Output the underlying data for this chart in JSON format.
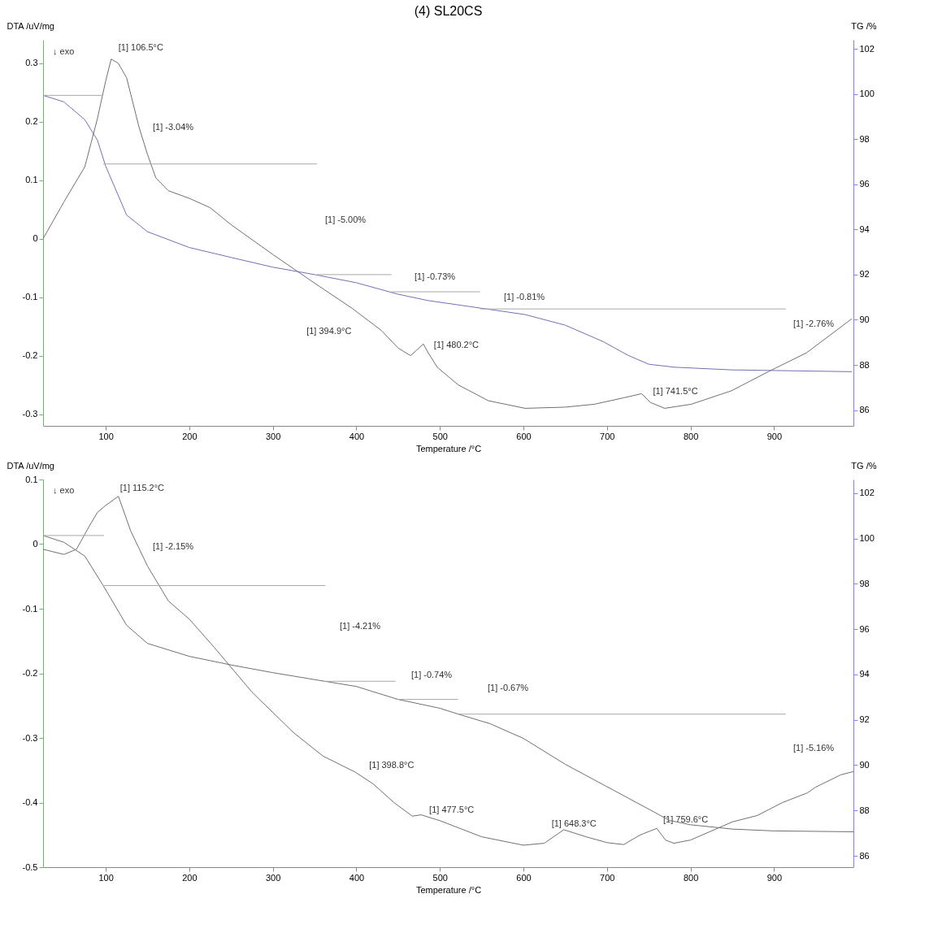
{
  "chart_data": [
    {
      "type": "line",
      "title": "(4) SL20CS",
      "xlabel": "Temperature /°C",
      "ylabel": "DTA /uV/mg",
      "y2label": "TG /%",
      "xlim": [
        25,
        995
      ],
      "xticks": [
        100,
        200,
        300,
        400,
        500,
        600,
        700,
        800,
        900
      ],
      "ylim": [
        -0.32,
        0.34
      ],
      "yticks": [
        -0.3,
        -0.2,
        -0.1,
        0,
        0.1,
        0.2,
        0.3
      ],
      "y2lim": [
        85.3,
        102.4
      ],
      "y2ticks": [
        86,
        88,
        90,
        92,
        94,
        96,
        98,
        100,
        102
      ],
      "series": [
        {
          "color": "#707070",
          "x": [
            25,
            50,
            75,
            90,
            100,
            106.5,
            115,
            125,
            140,
            150,
            160,
            175,
            200,
            225,
            250,
            300,
            350,
            394.9,
            430,
            450,
            465,
            480.2,
            486,
            497,
            522,
            558,
            602,
            650,
            685,
            720,
            741.5,
            752,
            769,
            801,
            849,
            895,
            939,
            993
          ],
          "values": [
            0.0,
            0.063,
            0.123,
            0.205,
            0.27,
            0.307,
            0.3,
            0.275,
            0.19,
            0.144,
            0.104,
            0.082,
            0.069,
            0.053,
            0.024,
            -0.027,
            -0.076,
            -0.119,
            -0.157,
            -0.187,
            -0.2,
            -0.18,
            -0.195,
            -0.22,
            -0.25,
            -0.277,
            -0.29,
            -0.288,
            -0.283,
            -0.272,
            -0.265,
            -0.28,
            -0.29,
            -0.283,
            -0.26,
            -0.226,
            -0.195,
            -0.137
          ]
        },
        {
          "color": "#7070b8",
          "axis": "y2",
          "x": [
            25,
            50,
            75,
            90,
            100,
            125,
            150,
            200,
            250,
            300,
            350,
            400,
            450,
            486,
            548,
            602,
            650,
            695,
            725,
            750,
            780,
            849,
            993
          ],
          "values": [
            99.94,
            99.65,
            98.86,
            97.96,
            96.8,
            94.64,
            93.9,
            93.2,
            92.76,
            92.33,
            92.0,
            91.64,
            91.13,
            90.85,
            90.52,
            90.23,
            89.76,
            89.04,
            88.43,
            88.03,
            87.9,
            87.78,
            87.7
          ]
        },
        {
          "color": "#a8a8a8",
          "axis": "y2",
          "x": [
            25,
            97
          ],
          "values": [
            99.94,
            99.94
          ]
        },
        {
          "color": "#a8a8a8",
          "axis": "y2",
          "x": [
            97,
            353
          ],
          "values": [
            96.9,
            96.9
          ]
        },
        {
          "color": "#a8a8a8",
          "axis": "y2",
          "x": [
            353,
            442
          ],
          "values": [
            92.0,
            92.0
          ]
        },
        {
          "color": "#a8a8a8",
          "axis": "y2",
          "x": [
            442,
            548
          ],
          "values": [
            91.24,
            91.24
          ]
        },
        {
          "color": "#a8a8a8",
          "axis": "y2",
          "x": [
            548,
            914
          ],
          "values": [
            90.48,
            90.48
          ]
        }
      ],
      "annotations": [
        "↓ exo",
        {
          "text": "[1] 106.5°C",
          "x": 106.5,
          "y": 0.307
        },
        "[1] -3.04%",
        "[1] -5.00%",
        "[1] -0.73%",
        "[1] -0.81%",
        {
          "text": "[1] 394.9°C",
          "x": 394.9,
          "y": -0.119
        },
        {
          "text": "[1] 480.2°C",
          "x": 480.2,
          "y": -0.18
        },
        {
          "text": "[1] 741.5°C",
          "x": 741.5,
          "y": -0.265
        },
        "[1] -2.76%"
      ]
    },
    {
      "type": "line",
      "xlabel": "Temperature /°C",
      "ylabel": "DTA /uV/mg",
      "y2label": "TG /%",
      "xlim": [
        25,
        995
      ],
      "xticks": [
        100,
        200,
        300,
        400,
        500,
        600,
        700,
        800,
        900
      ],
      "ylim": [
        -0.5,
        0.1
      ],
      "yticks": [
        -0.5,
        -0.4,
        -0.3,
        -0.2,
        -0.1,
        0,
        0.1
      ],
      "y2lim": [
        85.5,
        102.6
      ],
      "y2ticks": [
        86,
        88,
        90,
        92,
        94,
        96,
        98,
        100,
        102
      ],
      "series": [
        {
          "color": "#707070",
          "x": [
            25,
            50,
            65,
            80,
            90,
            100,
            115.2,
            130,
            150,
            175,
            200,
            230,
            275,
            325,
            360,
            398.8,
            420,
            445,
            467,
            477.5,
            500,
            550,
            600,
            625,
            648.3,
            675,
            700,
            720,
            740,
            759.6,
            770,
            780,
            800,
            850,
            880,
            910,
            940,
            950,
            980,
            995
          ],
          "values": [
            -0.008,
            -0.016,
            -0.008,
            0.027,
            0.049,
            0.06,
            0.074,
            0.02,
            -0.034,
            -0.088,
            -0.116,
            -0.16,
            -0.229,
            -0.292,
            -0.328,
            -0.353,
            -0.371,
            -0.4,
            -0.421,
            -0.419,
            -0.428,
            -0.453,
            -0.466,
            -0.463,
            -0.442,
            -0.453,
            -0.462,
            -0.465,
            -0.45,
            -0.44,
            -0.458,
            -0.463,
            -0.458,
            -0.43,
            -0.42,
            -0.4,
            -0.385,
            -0.376,
            -0.357,
            -0.352
          ]
        },
        {
          "color": "#707070",
          "axis": "y2",
          "x": [
            25,
            50,
            75,
            97,
            125,
            150,
            200,
            250,
            300,
            362,
            400,
            450,
            500,
            522,
            560,
            600,
            650,
            700,
            750,
            775,
            800,
            850,
            900,
            995
          ],
          "values": [
            100.13,
            99.83,
            99.22,
            97.92,
            96.17,
            95.37,
            94.8,
            94.42,
            94.08,
            93.7,
            93.47,
            92.9,
            92.51,
            92.25,
            91.83,
            91.18,
            90.04,
            89.05,
            88.06,
            87.56,
            87.37,
            87.18,
            87.1,
            87.06
          ]
        },
        {
          "color": "#a8a8a8",
          "axis": "y2",
          "x": [
            25,
            98
          ],
          "values": [
            100.13,
            100.13
          ]
        },
        {
          "color": "#a8a8a8",
          "axis": "y2",
          "x": [
            98,
            363
          ],
          "values": [
            97.92,
            97.92
          ]
        },
        {
          "color": "#a8a8a8",
          "axis": "y2",
          "x": [
            363,
            447
          ],
          "values": [
            93.7,
            93.7
          ]
        },
        {
          "color": "#a8a8a8",
          "axis": "y2",
          "x": [
            447,
            522
          ],
          "values": [
            92.9,
            92.9
          ]
        },
        {
          "color": "#a8a8a8",
          "axis": "y2",
          "x": [
            522,
            914
          ],
          "values": [
            92.25,
            92.25
          ]
        }
      ],
      "annotations": [
        "↓ exo",
        {
          "text": "[1] 115.2°C",
          "x": 115.2,
          "y": 0.074
        },
        "[1] -2.15%",
        "[1] -4.21%",
        "[1] -0.74%",
        "[1] -0.67%",
        {
          "text": "[1] 398.8°C",
          "x": 398.8,
          "y": -0.353
        },
        {
          "text": "[1] 477.5°C",
          "x": 477.5,
          "y": -0.419
        },
        {
          "text": "[1] 648.3°C",
          "x": 648.3,
          "y": -0.442
        },
        {
          "text": "[1] 759.6°C",
          "x": 759.6,
          "y": -0.44
        },
        "[1] -5.16%"
      ]
    }
  ]
}
